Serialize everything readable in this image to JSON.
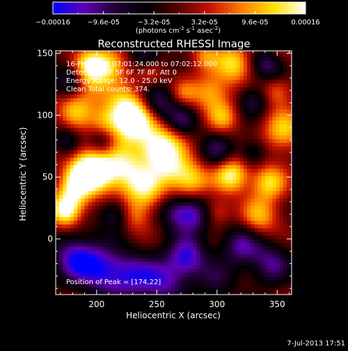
{
  "chart_data": {
    "type": "heatmap",
    "title": "Reconstructed RHESSI Image",
    "xlabel": "Heliocentric X (arcsec)",
    "ylabel": "Heliocentric Y (arcsec)",
    "xlim": [
      166,
      362
    ],
    "ylim": [
      -45,
      152
    ],
    "x_ticks": [
      200,
      250,
      300,
      350
    ],
    "y_ticks": [
      0,
      50,
      100,
      150
    ],
    "colorbar": {
      "range": [
        -0.00016,
        0.00016
      ],
      "tick_labels": [
        "-0.00016",
        "-9.6e-05",
        "-3.2e-05",
        "3.2e-05",
        "9.6e-05",
        "0.00016"
      ],
      "unit_label": "(photons cm",
      "unit_sup1": "-2",
      "unit_mid": " s",
      "unit_sup2": "-1",
      "unit_end": " asec",
      "unit_sup3": "-2",
      "unit_close": ")",
      "colormap": [
        "#0000ff",
        "#5f00b4",
        "#200030",
        "#000000",
        "#5a0000",
        "#c81400",
        "#ff8000",
        "#ffe000",
        "#ffffff"
      ]
    },
    "info_lines": [
      "16-Feb-2005 07:01:24.000 to 07:02:12.000",
      "Detectors: 4F 5F 6F 7F 8F, Att 0",
      "Energy Range: 12.0 - 25.0 keV",
      "Clean    Total counts: 374."
    ],
    "peak_label": "Position of Peak = [174,22]",
    "peak_position": [
      174,
      22
    ],
    "blobs": [
      {
        "x": 174,
        "y": 22,
        "v": 1.0,
        "s": 9
      },
      {
        "x": 180,
        "y": 35,
        "v": 0.7,
        "s": 10
      },
      {
        "x": 192,
        "y": 60,
        "v": 0.75,
        "s": 12
      },
      {
        "x": 185,
        "y": 48,
        "v": 0.55,
        "s": 9
      },
      {
        "x": 200,
        "y": 52,
        "v": 0.9,
        "s": 11
      },
      {
        "x": 182,
        "y": 105,
        "v": 0.7,
        "s": 11
      },
      {
        "x": 192,
        "y": 130,
        "v": 0.8,
        "s": 12
      },
      {
        "x": 212,
        "y": 142,
        "v": 0.75,
        "s": 10
      },
      {
        "x": 196,
        "y": 142,
        "v": 0.6,
        "s": 9
      },
      {
        "x": 225,
        "y": 102,
        "v": 0.95,
        "s": 14
      },
      {
        "x": 232,
        "y": 95,
        "v": 0.8,
        "s": 13
      },
      {
        "x": 222,
        "y": 58,
        "v": 0.9,
        "s": 13
      },
      {
        "x": 240,
        "y": 40,
        "v": 0.85,
        "s": 12
      },
      {
        "x": 260,
        "y": 58,
        "v": 0.7,
        "s": 11
      },
      {
        "x": 260,
        "y": 80,
        "v": 0.75,
        "s": 12
      },
      {
        "x": 247,
        "y": 72,
        "v": 0.6,
        "s": 10
      },
      {
        "x": 278,
        "y": 48,
        "v": 0.85,
        "s": 11
      },
      {
        "x": 295,
        "y": 118,
        "v": 0.7,
        "s": 11
      },
      {
        "x": 305,
        "y": 98,
        "v": 0.6,
        "s": 9
      },
      {
        "x": 314,
        "y": 142,
        "v": 0.85,
        "s": 11
      },
      {
        "x": 290,
        "y": 148,
        "v": 0.5,
        "s": 8
      },
      {
        "x": 312,
        "y": 52,
        "v": 1.0,
        "s": 10
      },
      {
        "x": 335,
        "y": 18,
        "v": 0.7,
        "s": 11
      },
      {
        "x": 343,
        "y": 46,
        "v": 0.85,
        "s": 10
      },
      {
        "x": 355,
        "y": 88,
        "v": 0.75,
        "s": 12
      },
      {
        "x": 350,
        "y": 120,
        "v": 0.55,
        "s": 9
      },
      {
        "x": 272,
        "y": 118,
        "v": 0.45,
        "s": 8
      },
      {
        "x": 300,
        "y": 22,
        "v": 0.45,
        "s": 8
      },
      {
        "x": 232,
        "y": 18,
        "v": 0.45,
        "s": 9
      },
      {
        "x": 206,
        "y": 95,
        "v": 0.35,
        "s": 8
      },
      {
        "x": 245,
        "y": 132,
        "v": 0.35,
        "s": 8
      },
      {
        "x": 350,
        "y": 150,
        "v": 0.4,
        "s": 8
      },
      {
        "x": 250,
        "y": 110,
        "v": -0.8,
        "s": 11
      },
      {
        "x": 270,
        "y": 95,
        "v": -0.7,
        "s": 10
      },
      {
        "x": 280,
        "y": 20,
        "v": -0.8,
        "s": 11
      },
      {
        "x": 300,
        "y": 72,
        "v": -0.6,
        "s": 10
      },
      {
        "x": 330,
        "y": 70,
        "v": -0.5,
        "s": 8
      },
      {
        "x": 265,
        "y": 22,
        "v": -0.55,
        "s": 10
      },
      {
        "x": 182,
        "y": -15,
        "v": -0.9,
        "s": 14
      },
      {
        "x": 205,
        "y": -25,
        "v": -0.8,
        "s": 14
      },
      {
        "x": 230,
        "y": -30,
        "v": -0.75,
        "s": 14
      },
      {
        "x": 275,
        "y": -15,
        "v": -0.95,
        "s": 12
      },
      {
        "x": 255,
        "y": -35,
        "v": -0.7,
        "s": 13
      },
      {
        "x": 320,
        "y": -5,
        "v": -0.75,
        "s": 12
      },
      {
        "x": 345,
        "y": -20,
        "v": -0.7,
        "s": 12
      },
      {
        "x": 300,
        "y": -35,
        "v": -0.5,
        "s": 11
      },
      {
        "x": 178,
        "y": 128,
        "v": -0.85,
        "s": 10
      },
      {
        "x": 175,
        "y": 80,
        "v": -0.5,
        "s": 8
      },
      {
        "x": 345,
        "y": 142,
        "v": -0.85,
        "s": 10
      },
      {
        "x": 330,
        "y": 112,
        "v": -0.6,
        "s": 9
      },
      {
        "x": 240,
        "y": 150,
        "v": -0.6,
        "s": 9
      },
      {
        "x": 205,
        "y": 78,
        "v": -0.5,
        "s": 8
      },
      {
        "x": 215,
        "y": 20,
        "v": -0.6,
        "s": 9
      }
    ],
    "grid": false
  },
  "footer": {
    "date": "7-Jul-2013 17:51"
  }
}
